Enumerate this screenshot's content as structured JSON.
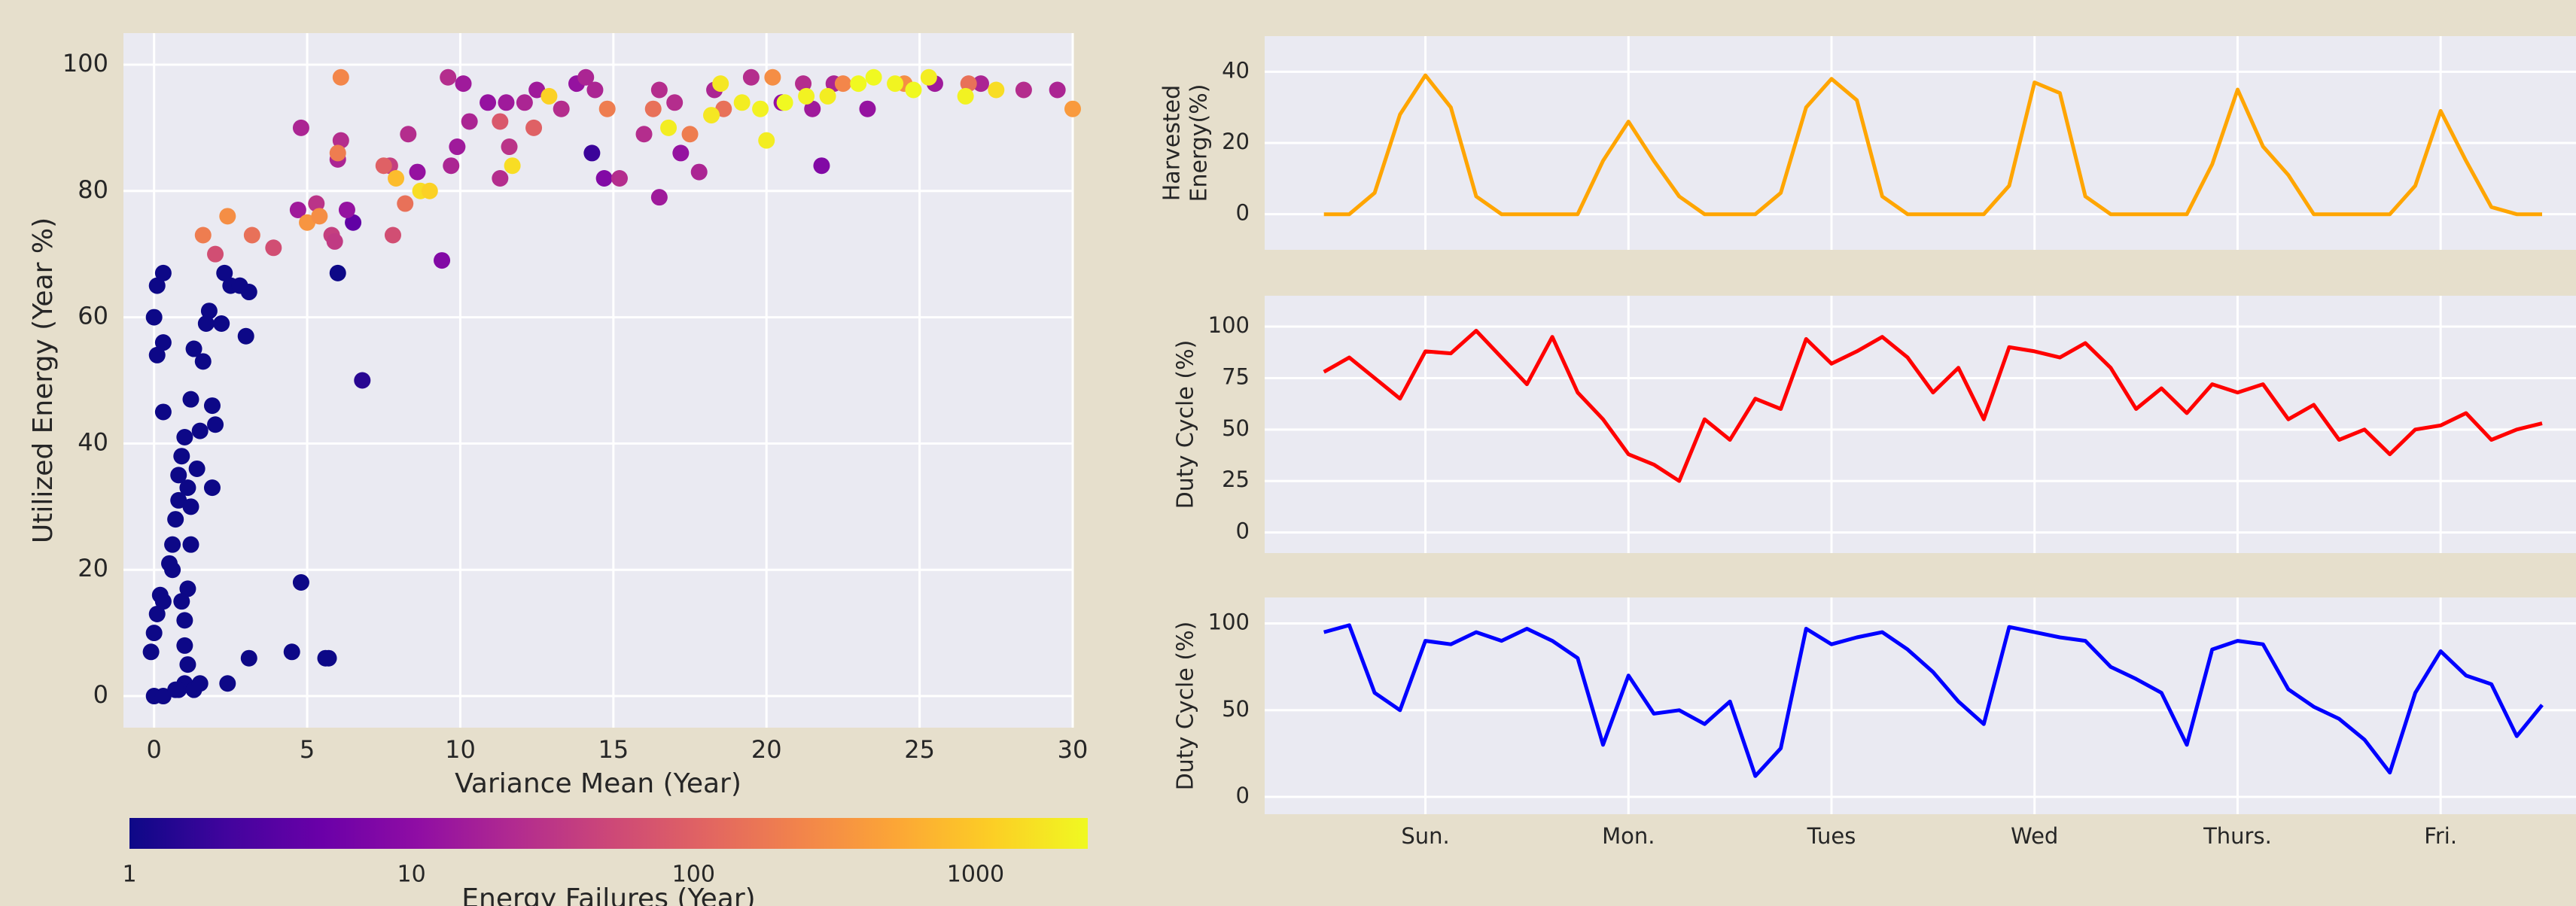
{
  "chart_data": [
    {
      "type": "scatter",
      "x": [
        0,
        0.3,
        -0.1,
        0,
        0.1,
        0.2,
        0.3,
        0,
        0.1,
        0.3,
        0.1,
        0.3,
        0.3,
        0.6,
        0.6,
        0.7,
        0.8,
        0.8,
        0.9,
        1,
        1.1,
        1.2,
        1.2,
        1.1,
        1,
        1,
        1.1,
        1,
        0.8,
        0.7,
        1.3,
        1.5,
        1.4,
        1.5,
        1.6,
        1.7,
        1.8,
        1.9,
        2,
        1.9,
        2.2,
        2.3,
        2.5,
        2.8,
        3,
        3.1,
        2.4,
        3.1,
        4.5,
        4.8,
        5.6,
        5.7,
        6,
        6.8,
        6.5,
        14.3,
        1.3,
        0.5,
        0.9,
        1.2,
        4.8,
        4.7,
        5.3,
        5.8,
        6.1,
        6.0,
        6.3,
        5.9,
        7.7,
        8.3,
        8.6,
        9.4,
        9.6,
        9.7,
        9.9,
        10.1,
        10.3,
        10.9,
        11.5,
        11.6,
        11.3,
        12.1,
        12.5,
        13.3,
        13.8,
        14.1,
        14.4,
        14.7,
        15.2,
        16,
        16.5,
        16.5,
        17,
        17.2,
        17.8,
        18.3,
        19.5,
        20.5,
        21.2,
        21.5,
        21.8,
        22.2,
        23.3,
        25.5,
        27,
        28.4,
        29.5,
        1.6,
        2.4,
        2.0,
        3.2,
        3.9,
        6.1,
        6.0,
        7.5,
        8.2,
        7.8,
        5.0,
        5.4,
        11.3,
        12.4,
        14.8,
        16.3,
        17.5,
        18.6,
        20.2,
        22.5,
        24.5,
        26.6,
        30,
        7.9,
        8.7,
        9.0,
        11.7,
        12.9,
        16.8,
        18.5,
        19.2,
        19.8,
        20.0,
        20.6,
        21.3,
        22.0,
        23.0,
        23.5,
        24.2,
        24.8,
        25.3,
        26.5,
        27.5,
        18.2
      ],
      "values": [
        0,
        0,
        7,
        10,
        13,
        16,
        15,
        60,
        65,
        67,
        54,
        56,
        45,
        20,
        24,
        28,
        31,
        35,
        38,
        41,
        33,
        47,
        24,
        17,
        12,
        8,
        5,
        2,
        1,
        1,
        1,
        2,
        36,
        42,
        53,
        59,
        61,
        46,
        43,
        33,
        59,
        67,
        65,
        65,
        57,
        64,
        2,
        6,
        7,
        18,
        6,
        6,
        67,
        50,
        75,
        86,
        55,
        21,
        15,
        30,
        90,
        77,
        78,
        73,
        88,
        85,
        77,
        72,
        84,
        89,
        83,
        69,
        98,
        84,
        87,
        97,
        91,
        94,
        94,
        87,
        82,
        94,
        96,
        93,
        97,
        98,
        96,
        82,
        82,
        89,
        79,
        96,
        94,
        86,
        83,
        96,
        98,
        94,
        97,
        93,
        84,
        97,
        93,
        97,
        97,
        96,
        96,
        73,
        76,
        70,
        73,
        71,
        98,
        86,
        84,
        78,
        73,
        75,
        76,
        91,
        90,
        93,
        93,
        89,
        93,
        98,
        97,
        97,
        97,
        93,
        82,
        80,
        80,
        84,
        95,
        90,
        97,
        94,
        93,
        88,
        94,
        95,
        95,
        97,
        98,
        97,
        96,
        98,
        95,
        96,
        92
      ],
      "color_values": [
        1,
        1,
        1,
        1,
        1,
        1,
        1,
        1,
        1,
        1,
        1,
        1,
        1,
        1,
        1,
        1,
        1,
        1,
        1,
        1,
        1,
        1,
        1,
        1,
        1,
        1,
        1,
        1,
        1,
        1,
        1,
        1,
        1,
        1,
        1,
        1,
        1,
        1,
        1,
        1,
        1,
        1,
        1,
        1,
        1,
        1,
        1,
        1,
        1,
        1,
        1,
        1,
        1,
        1.5,
        4,
        2,
        1,
        1,
        1,
        1,
        20,
        15,
        30,
        40,
        25,
        20,
        12,
        35,
        40,
        25,
        12,
        8,
        25,
        20,
        15,
        15,
        20,
        12,
        15,
        30,
        25,
        20,
        15,
        25,
        12,
        20,
        20,
        8,
        25,
        25,
        15,
        25,
        25,
        12,
        20,
        20,
        25,
        12,
        25,
        15,
        8,
        20,
        12,
        15,
        20,
        25,
        20,
        200,
        300,
        60,
        150,
        60,
        250,
        200,
        100,
        150,
        60,
        350,
        300,
        80,
        100,
        200,
        150,
        200,
        150,
        300,
        250,
        300,
        150,
        400,
        800,
        1500,
        1200,
        1500,
        1200,
        2000,
        1800,
        2000,
        2200,
        2000,
        2500,
        2200,
        2000,
        2500,
        2500,
        2300,
        2500,
        2000,
        2200,
        1500,
        1800
      ],
      "colormap": "plasma",
      "xlim": [
        -1,
        30
      ],
      "ylim": [
        -5,
        105
      ],
      "xticks": [
        0,
        5,
        10,
        15,
        20,
        25,
        30
      ],
      "yticks": [
        0,
        20,
        40,
        60,
        80,
        100
      ],
      "xlabel": "Variance Mean (Year)",
      "ylabel": "Utilized Energy (Year %)",
      "grid": true,
      "colorbar": {
        "label": "Energy Failures (Year)",
        "lim": [
          1,
          2500
        ],
        "ticks": [
          1,
          10,
          100,
          1000
        ],
        "log": true
      }
    },
    {
      "type": "line",
      "x": [
        -12,
        -9,
        -6,
        -3,
        0,
        3,
        6,
        9,
        12,
        15,
        18,
        21,
        24,
        27,
        30,
        33,
        36,
        39,
        42,
        45,
        48,
        51,
        54,
        57,
        60,
        63,
        66,
        69,
        72,
        75,
        78,
        81,
        84,
        87,
        90,
        93,
        96,
        99,
        102,
        105,
        108,
        111,
        114,
        117,
        120,
        123,
        126,
        129,
        132
      ],
      "series": [
        {
          "color": "#ffa500",
          "values": [
            0,
            0,
            6,
            28,
            39,
            30,
            5,
            0,
            0,
            0,
            0,
            15,
            26,
            15,
            5,
            0,
            0,
            0,
            6,
            30,
            38,
            32,
            5,
            0,
            0,
            0,
            0,
            8,
            37,
            34,
            5,
            0,
            0,
            0,
            0,
            14,
            35,
            19,
            11,
            0,
            0,
            0,
            0,
            8,
            29,
            15,
            2,
            0,
            0
          ]
        }
      ],
      "ylabel": [
        "Harvested",
        "Energy(%)"
      ],
      "xlim": [
        -19,
        136
      ],
      "ylim": [
        -10,
        50
      ],
      "xticks": [
        0,
        24,
        48,
        72,
        96,
        120
      ],
      "xtick_labels": false,
      "yticks": [
        0,
        20,
        40
      ],
      "grid": true
    },
    {
      "type": "line",
      "x": [
        -12,
        -9,
        -6,
        -3,
        0,
        3,
        6,
        9,
        12,
        15,
        18,
        21,
        24,
        27,
        30,
        33,
        36,
        39,
        42,
        45,
        48,
        51,
        54,
        57,
        60,
        63,
        66,
        69,
        72,
        75,
        78,
        81,
        84,
        87,
        90,
        93,
        96,
        99,
        102,
        105,
        108,
        111,
        114,
        117,
        120,
        123,
        126,
        129,
        132
      ],
      "series": [
        {
          "color": "#ff0000",
          "values": [
            78,
            85,
            75,
            65,
            88,
            87,
            98,
            85,
            72,
            95,
            68,
            55,
            38,
            33,
            25,
            55,
            45,
            65,
            60,
            94,
            82,
            88,
            95,
            85,
            68,
            80,
            55,
            90,
            88,
            85,
            92,
            80,
            60,
            70,
            58,
            72,
            68,
            72,
            55,
            62,
            45,
            50,
            38,
            50,
            52,
            58,
            45,
            50,
            53
          ]
        }
      ],
      "ylabel": [
        "Duty Cycle (%)"
      ],
      "xlim": [
        -19,
        136
      ],
      "ylim": [
        -10,
        115
      ],
      "xticks": [
        0,
        24,
        48,
        72,
        96,
        120
      ],
      "xtick_labels": false,
      "yticks": [
        0,
        25,
        50,
        75,
        100
      ],
      "grid": true
    },
    {
      "type": "line",
      "x": [
        -12,
        -9,
        -6,
        -3,
        0,
        3,
        6,
        9,
        12,
        15,
        18,
        21,
        24,
        27,
        30,
        33,
        36,
        39,
        42,
        45,
        48,
        51,
        54,
        57,
        60,
        63,
        66,
        69,
        72,
        75,
        78,
        81,
        84,
        87,
        90,
        93,
        96,
        99,
        102,
        105,
        108,
        111,
        114,
        117,
        120,
        123,
        126,
        129,
        132
      ],
      "series": [
        {
          "color": "#0000ff",
          "values": [
            95,
            99,
            60,
            50,
            90,
            88,
            95,
            90,
            97,
            90,
            80,
            30,
            70,
            48,
            50,
            42,
            55,
            12,
            28,
            97,
            88,
            92,
            95,
            85,
            72,
            55,
            42,
            98,
            95,
            92,
            90,
            75,
            68,
            60,
            30,
            85,
            90,
            88,
            62,
            52,
            45,
            33,
            14,
            60,
            84,
            70,
            65,
            35,
            53
          ]
        }
      ],
      "ylabel": [
        "Duty Cycle (%)"
      ],
      "xlim": [
        -19,
        136
      ],
      "ylim": [
        -10,
        115
      ],
      "xticks": [
        {
          "value": 0,
          "label": "Sun."
        },
        {
          "value": 24,
          "label": "Mon."
        },
        {
          "value": 48,
          "label": "Tues"
        },
        {
          "value": 72,
          "label": "Wed"
        },
        {
          "value": 96,
          "label": "Thurs."
        },
        {
          "value": 120,
          "label": "Fri."
        }
      ],
      "yticks": [
        0,
        50,
        100
      ],
      "grid": true
    }
  ]
}
